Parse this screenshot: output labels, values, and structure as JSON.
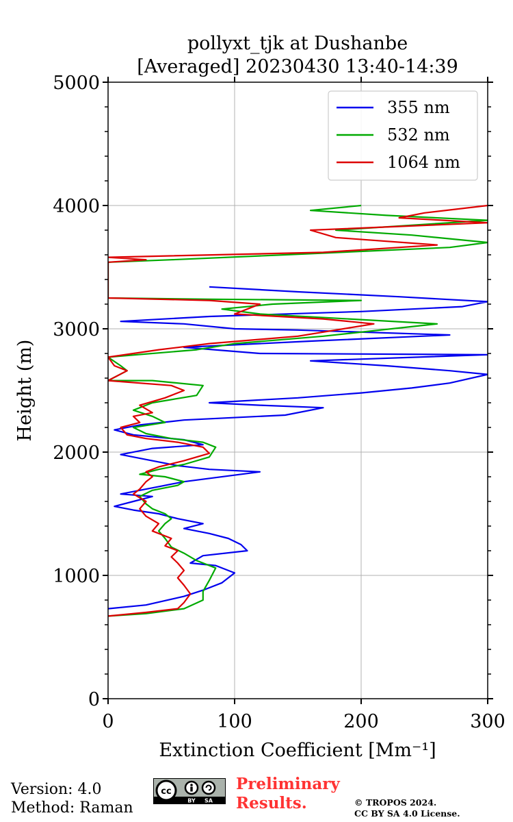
{
  "chart_data": {
    "type": "line",
    "title": "pollyxt_tjk at Dushanbe",
    "subtitle": "[Averaged] 20230430 13:40-14:39",
    "xlabel": "Extinction Coefficient [Mm⁻¹]",
    "ylabel": "Height (m)",
    "xlim": [
      0,
      300
    ],
    "ylim": [
      0,
      5000
    ],
    "xticks": [
      "0",
      "100",
      "200",
      "300"
    ],
    "yticks": [
      "0",
      "1000",
      "2000",
      "3000",
      "4000",
      "5000"
    ],
    "grid": true,
    "legend_position": "top-right",
    "orientation": "vertical-profile",
    "series": [
      {
        "name": "355 nm",
        "color": "#0000ee",
        "points": [
          [
            0,
            730
          ],
          [
            30,
            760
          ],
          [
            60,
            830
          ],
          [
            75,
            880
          ],
          [
            90,
            940
          ],
          [
            100,
            1020
          ],
          [
            85,
            1080
          ],
          [
            65,
            1100
          ],
          [
            75,
            1160
          ],
          [
            110,
            1200
          ],
          [
            105,
            1250
          ],
          [
            95,
            1300
          ],
          [
            80,
            1340
          ],
          [
            60,
            1380
          ],
          [
            75,
            1420
          ],
          [
            55,
            1460
          ],
          [
            40,
            1500
          ],
          [
            20,
            1530
          ],
          [
            5,
            1560
          ],
          [
            20,
            1600
          ],
          [
            35,
            1640
          ],
          [
            10,
            1660
          ],
          [
            25,
            1690
          ],
          [
            40,
            1720
          ],
          [
            60,
            1760
          ],
          [
            120,
            1840
          ],
          [
            80,
            1860
          ],
          [
            55,
            1890
          ],
          [
            30,
            1940
          ],
          [
            10,
            1980
          ],
          [
            35,
            2030
          ],
          [
            75,
            2060
          ],
          [
            60,
            2100
          ],
          [
            20,
            2140
          ],
          [
            5,
            2180
          ],
          [
            25,
            2220
          ],
          [
            60,
            2260
          ],
          [
            140,
            2300
          ],
          [
            170,
            2360
          ],
          [
            120,
            2380
          ],
          [
            80,
            2400
          ],
          [
            150,
            2440
          ],
          [
            200,
            2480
          ],
          [
            240,
            2520
          ],
          [
            270,
            2560
          ],
          [
            300,
            2630
          ],
          [
            270,
            2660
          ],
          [
            220,
            2700
          ],
          [
            160,
            2740
          ],
          [
            300,
            2790
          ],
          [
            120,
            2800
          ],
          [
            60,
            2850
          ],
          [
            160,
            2900
          ],
          [
            270,
            2950
          ],
          [
            150,
            2990
          ],
          [
            100,
            3000
          ],
          [
            60,
            3040
          ],
          [
            10,
            3060
          ],
          [
            80,
            3100
          ],
          [
            200,
            3140
          ],
          [
            280,
            3180
          ],
          [
            300,
            3220
          ],
          [
            230,
            3260
          ],
          [
            150,
            3300
          ],
          [
            80,
            3340
          ]
        ]
      },
      {
        "name": "532 nm",
        "color": "#00aa00",
        "points": [
          [
            0,
            670
          ],
          [
            30,
            690
          ],
          [
            60,
            730
          ],
          [
            75,
            800
          ],
          [
            75,
            870
          ],
          [
            80,
            960
          ],
          [
            85,
            1060
          ],
          [
            70,
            1120
          ],
          [
            60,
            1180
          ],
          [
            50,
            1230
          ],
          [
            45,
            1300
          ],
          [
            40,
            1360
          ],
          [
            45,
            1420
          ],
          [
            50,
            1460
          ],
          [
            45,
            1500
          ],
          [
            35,
            1540
          ],
          [
            30,
            1580
          ],
          [
            25,
            1640
          ],
          [
            35,
            1690
          ],
          [
            55,
            1730
          ],
          [
            60,
            1760
          ],
          [
            45,
            1800
          ],
          [
            25,
            1820
          ],
          [
            40,
            1860
          ],
          [
            60,
            1900
          ],
          [
            80,
            1960
          ],
          [
            85,
            2040
          ],
          [
            75,
            2080
          ],
          [
            50,
            2110
          ],
          [
            30,
            2150
          ],
          [
            20,
            2200
          ],
          [
            45,
            2240
          ],
          [
            35,
            2290
          ],
          [
            20,
            2340
          ],
          [
            35,
            2400
          ],
          [
            70,
            2460
          ],
          [
            75,
            2540
          ],
          [
            35,
            2580
          ],
          [
            0,
            2580
          ],
          [
            15,
            2660
          ],
          [
            10,
            2700
          ],
          [
            0,
            2770
          ],
          [
            70,
            2830
          ],
          [
            100,
            2880
          ],
          [
            170,
            2940
          ],
          [
            260,
            3040
          ],
          [
            190,
            3080
          ],
          [
            120,
            3120
          ],
          [
            90,
            3160
          ],
          [
            130,
            3200
          ],
          [
            200,
            3230
          ],
          [
            80,
            3240
          ],
          [
            0,
            3250
          ],
          [
            0,
            3540
          ],
          [
            50,
            3560
          ],
          [
            140,
            3600
          ],
          [
            270,
            3660
          ],
          [
            300,
            3700
          ],
          [
            240,
            3760
          ],
          [
            180,
            3800
          ],
          [
            300,
            3880
          ],
          [
            220,
            3920
          ],
          [
            160,
            3960
          ],
          [
            200,
            4000
          ]
        ]
      },
      {
        "name": "1064 nm",
        "color": "#dd0000",
        "points": [
          [
            0,
            670
          ],
          [
            30,
            700
          ],
          [
            55,
            730
          ],
          [
            60,
            780
          ],
          [
            65,
            850
          ],
          [
            60,
            920
          ],
          [
            55,
            980
          ],
          [
            60,
            1040
          ],
          [
            55,
            1100
          ],
          [
            50,
            1150
          ],
          [
            55,
            1200
          ],
          [
            45,
            1240
          ],
          [
            50,
            1300
          ],
          [
            35,
            1360
          ],
          [
            40,
            1420
          ],
          [
            30,
            1480
          ],
          [
            25,
            1540
          ],
          [
            30,
            1600
          ],
          [
            20,
            1660
          ],
          [
            25,
            1700
          ],
          [
            30,
            1760
          ],
          [
            35,
            1800
          ],
          [
            30,
            1840
          ],
          [
            40,
            1880
          ],
          [
            60,
            1930
          ],
          [
            80,
            1990
          ],
          [
            75,
            2040
          ],
          [
            55,
            2080
          ],
          [
            30,
            2110
          ],
          [
            15,
            2140
          ],
          [
            10,
            2200
          ],
          [
            25,
            2240
          ],
          [
            20,
            2290
          ],
          [
            35,
            2320
          ],
          [
            25,
            2380
          ],
          [
            45,
            2440
          ],
          [
            60,
            2500
          ],
          [
            50,
            2540
          ],
          [
            0,
            2580
          ],
          [
            15,
            2660
          ],
          [
            5,
            2700
          ],
          [
            0,
            2770
          ],
          [
            40,
            2830
          ],
          [
            80,
            2880
          ],
          [
            150,
            2940
          ],
          [
            210,
            3040
          ],
          [
            170,
            3080
          ],
          [
            100,
            3120
          ],
          [
            110,
            3160
          ],
          [
            120,
            3200
          ],
          [
            80,
            3230
          ],
          [
            0,
            3250
          ],
          [
            0,
            3540
          ],
          [
            30,
            3560
          ],
          [
            0,
            3580
          ],
          [
            170,
            3620
          ],
          [
            260,
            3680
          ],
          [
            180,
            3740
          ],
          [
            160,
            3800
          ],
          [
            300,
            3860
          ],
          [
            230,
            3900
          ],
          [
            250,
            3940
          ],
          [
            300,
            4000
          ]
        ]
      }
    ]
  },
  "footer": {
    "version": "Version: 4.0",
    "method": "Method: Raman",
    "preliminary_line1": "Preliminary",
    "preliminary_line2": "Results.",
    "copyright_line1": "© TROPOS 2024.",
    "copyright_line2": "CC BY SA 4.0 License.",
    "license_badge": [
      "cc",
      "BY",
      "SA"
    ]
  }
}
